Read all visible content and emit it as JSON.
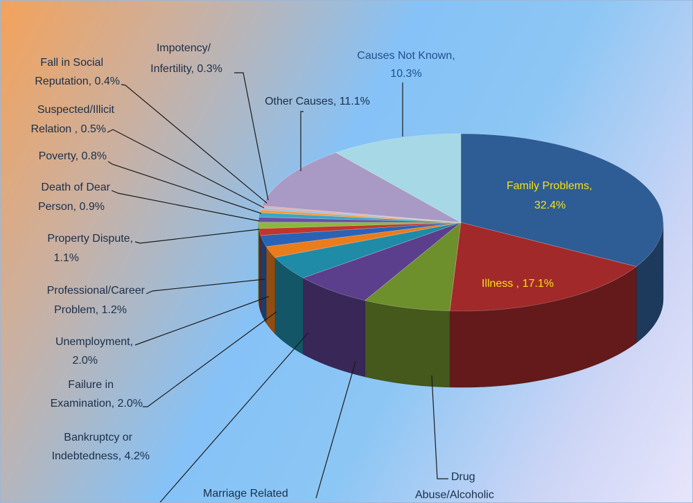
{
  "chart_data": {
    "type": "pie",
    "title": "",
    "legend": "none",
    "slices": [
      {
        "label": "Family Problems, 32.4%",
        "value": 32.4,
        "color": "#2e5c94",
        "label_color": "#f5e214"
      },
      {
        "label": "Illness , 17.1%",
        "value": 17.1,
        "color": "#a1292a",
        "label_color": "#f5e214"
      },
      {
        "label": "Drug Abuse/Alcoholic",
        "value": 6.8,
        "color": "#6d8f2c",
        "label_color": "#1a2f4a"
      },
      {
        "label": "Marriage Related",
        "value": 6.2,
        "color": "#5b3f8c",
        "label_color": "#1a2f4a"
      },
      {
        "label": "Bankruptcy or Indebtedness, 4.2%",
        "value": 4.2,
        "color": "#1f8ba6",
        "label_color": "#1a2f4a"
      },
      {
        "label": "Failure in Examination, 2.0%",
        "value": 2.0,
        "color": "#ea7c1c",
        "label_color": "#1a2f4a"
      },
      {
        "label": "Unemployment, 2.0%",
        "value": 2.0,
        "color": "#2a63b5",
        "label_color": "#1a2f4a"
      },
      {
        "label": "Professional/Career Problem, 1.2%",
        "value": 1.2,
        "color": "#c0352c",
        "label_color": "#1a2f4a"
      },
      {
        "label": "Property Dispute, 1.1%",
        "value": 1.1,
        "color": "#8ab83c",
        "label_color": "#1a2f4a"
      },
      {
        "label": "Death of Dear Person, 0.9%",
        "value": 0.9,
        "color": "#6a4fa6",
        "label_color": "#1a2f4a"
      },
      {
        "label": "Poverty, 0.8%",
        "value": 0.8,
        "color": "#3aa6c4",
        "label_color": "#1a2f4a"
      },
      {
        "label": "Suspected/Illicit Relation , 0.5%",
        "value": 0.5,
        "color": "#f59a3c",
        "label_color": "#1a2f4a"
      },
      {
        "label": "Fall in Social Reputation, 0.4%",
        "value": 0.4,
        "color": "#9fbde6",
        "label_color": "#1a2f4a"
      },
      {
        "label": "Impotency/ Infertility, 0.3%",
        "value": 0.3,
        "color": "#e8a8a6",
        "label_color": "#1a2f4a"
      },
      {
        "label": "Other Causes, 11.1%",
        "value": 11.1,
        "color": "#a89ac4",
        "label_color": "#1a2f4a"
      },
      {
        "label": "Causes Not Known, 10.3%",
        "value": 10.3,
        "color": "#a6d8e6",
        "label_color": "#1f4f8f"
      }
    ]
  }
}
